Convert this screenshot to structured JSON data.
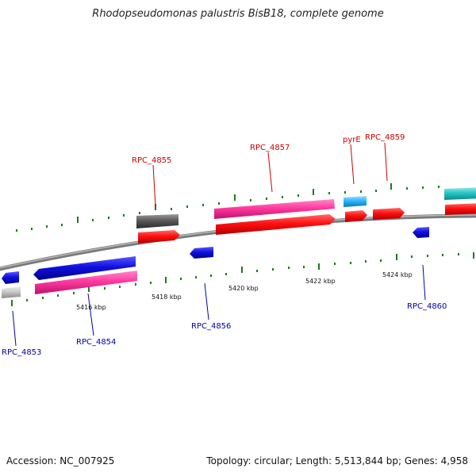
{
  "title": "Rhodopseudomonas palustris BisB18, complete genome",
  "footer": {
    "accession": "Accession: NC_007925",
    "stats": "Topology: circular; Length: 5,513,844 bp; Genes: 4,958"
  },
  "axis_ticks": [
    "5416 kbp",
    "5418 kbp",
    "5420 kbp",
    "5422 kbp",
    "5424 kbp"
  ],
  "labels": {
    "RPC_4853": "RPC_4853",
    "RPC_4854": "RPC_4854",
    "RPC_4855": "RPC_4855",
    "RPC_4856": "RPC_4856",
    "RPC_4857": "RPC_4857",
    "pyrE": "pyrE",
    "RPC_4859": "RPC_4859",
    "RPC_4860": "RPC_4860"
  },
  "colors": {
    "backbone": "#8a8a8a",
    "tick_green": "#1a7a1a",
    "label_red": "#cc0000",
    "label_blue": "#0000aa",
    "cds_red": "#ff1010",
    "cds_blue": "#1010e0",
    "pink": "#ff3aa0",
    "gray": "#5a5a5a",
    "light_gray": "#c8c8c8",
    "sky": "#29b8ff",
    "teal": "#26c6c6"
  }
}
